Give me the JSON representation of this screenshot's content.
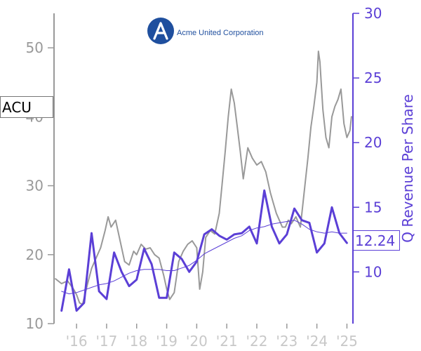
{
  "company_name": "Acme United Corporation",
  "ticker": "ACU",
  "last_value_label": "12.24",
  "colors": {
    "price": "#999999",
    "revenue": "#5b3fd6",
    "revenue_ma": "#5b3fd6",
    "logo": "#1f4f9e",
    "x_tick_labels": "#c8c8c8"
  },
  "chart_data": {
    "type": "line",
    "title": "",
    "xlabel": "",
    "ylabel_left": "",
    "ylabel_right": "Q Revenue Per Share",
    "xlim": [
      2015.25,
      2025.2
    ],
    "ylim_left": [
      10,
      55
    ],
    "ylim_right": [
      6,
      30
    ],
    "x_tick_values": [
      2016,
      2017,
      2018,
      2019,
      2020,
      2021,
      2022,
      2023,
      2024,
      2025
    ],
    "x_tick_labels": [
      "'16",
      "'17",
      "'18",
      "'19",
      "'20",
      "'21",
      "'22",
      "'23",
      "'24",
      "'25"
    ],
    "y_left_ticks": [
      10,
      20,
      30,
      40,
      50
    ],
    "y_left_tick_labels": [
      "10",
      "20",
      "30",
      "40",
      "50"
    ],
    "y_right_ticks": [
      10,
      15,
      20,
      25,
      30
    ],
    "y_right_tick_labels": [
      "10",
      "15",
      "20",
      "25",
      "30"
    ],
    "grid": false,
    "legend": "none",
    "series": [
      {
        "axis": "left",
        "x": [
          2015.3,
          2015.5,
          2015.7,
          2015.9,
          2016.0,
          2016.1,
          2016.2,
          2016.35,
          2016.5,
          2016.65,
          2016.8,
          2016.95,
          2017.05,
          2017.15,
          2017.3,
          2017.45,
          2017.6,
          2017.75,
          2017.9,
          2018.0,
          2018.15,
          2018.3,
          2018.45,
          2018.6,
          2018.75,
          2018.9,
          2019.0,
          2019.1,
          2019.25,
          2019.4,
          2019.55,
          2019.7,
          2019.85,
          2020.0,
          2020.1,
          2020.2,
          2020.3,
          2020.45,
          2020.6,
          2020.75,
          2020.85,
          2020.95,
          2021.05,
          2021.15,
          2021.25,
          2021.35,
          2021.45,
          2021.55,
          2021.7,
          2021.85,
          2022.0,
          2022.15,
          2022.3,
          2022.45,
          2022.55,
          2022.65,
          2022.75,
          2022.85,
          2022.95,
          2023.05,
          2023.15,
          2023.3,
          2023.45,
          2023.6,
          2023.7,
          2023.8,
          2023.9,
          2024.0,
          2024.05,
          2024.1,
          2024.2,
          2024.3,
          2024.4,
          2024.5,
          2024.6,
          2024.7,
          2024.8,
          2024.9,
          2025.0,
          2025.1,
          2025.15
        ],
        "y": [
          16.5,
          15.8,
          16.2,
          15.0,
          14.2,
          13.0,
          12.8,
          15.5,
          18.0,
          19.5,
          21.0,
          23.5,
          25.5,
          24.0,
          25.0,
          22.0,
          19.0,
          18.5,
          20.5,
          20.0,
          21.5,
          20.8,
          21.0,
          20.0,
          19.5,
          17.0,
          15.0,
          13.5,
          14.5,
          19.0,
          20.5,
          21.5,
          22.0,
          21.0,
          15.0,
          17.5,
          22.5,
          23.5,
          23.0,
          26.0,
          30.5,
          35.0,
          40.0,
          44.0,
          42.0,
          38.5,
          35.0,
          31.0,
          35.5,
          34.0,
          33.0,
          33.5,
          32.0,
          29.0,
          27.5,
          26.0,
          25.0,
          24.0,
          24.0,
          25.0,
          24.5,
          25.5,
          24.0,
          30.0,
          34.0,
          38.5,
          41.5,
          45.0,
          49.5,
          48.0,
          41.0,
          37.0,
          35.5,
          40.0,
          41.5,
          42.5,
          44.0,
          39.0,
          37.0,
          38.0,
          40.0
        ]
      },
      {
        "axis": "right",
        "x": [
          2015.5,
          2015.75,
          2016.0,
          2016.25,
          2016.5,
          2016.75,
          2017.0,
          2017.25,
          2017.5,
          2017.75,
          2018.0,
          2018.25,
          2018.5,
          2018.75,
          2019.0,
          2019.25,
          2019.5,
          2019.75,
          2020.0,
          2020.25,
          2020.5,
          2020.75,
          2021.0,
          2021.25,
          2021.5,
          2021.75,
          2022.0,
          2022.25,
          2022.5,
          2022.75,
          2023.0,
          2023.25,
          2023.5,
          2023.75,
          2024.0,
          2024.25,
          2024.5,
          2024.75,
          2025.0
        ],
        "y": [
          7.0,
          10.2,
          7.0,
          7.6,
          13.0,
          8.5,
          7.9,
          11.5,
          10.0,
          8.9,
          9.4,
          11.8,
          10.6,
          8.0,
          8.0,
          11.5,
          11.0,
          10.0,
          10.8,
          12.9,
          13.3,
          12.8,
          12.5,
          12.9,
          13.0,
          13.5,
          12.2,
          16.3,
          13.5,
          12.2,
          12.9,
          14.9,
          14.0,
          13.8,
          11.5,
          12.2,
          15.0,
          13.0,
          12.24
        ]
      },
      {
        "axis": "right",
        "x": [
          2015.5,
          2015.75,
          2016.0,
          2016.25,
          2016.5,
          2016.75,
          2017.0,
          2017.25,
          2017.5,
          2017.75,
          2018.0,
          2018.25,
          2018.5,
          2018.75,
          2019.0,
          2019.25,
          2019.5,
          2019.75,
          2020.0,
          2020.25,
          2020.5,
          2020.75,
          2021.0,
          2021.25,
          2021.5,
          2021.75,
          2022.0,
          2022.25,
          2022.5,
          2022.75,
          2023.0,
          2023.25,
          2023.5,
          2023.75,
          2024.0,
          2024.25,
          2024.5,
          2024.75,
          2025.0
        ],
        "y": [
          8.5,
          8.3,
          8.4,
          8.6,
          8.8,
          9.0,
          9.1,
          9.3,
          9.6,
          9.9,
          10.1,
          10.2,
          10.2,
          10.2,
          10.1,
          10.1,
          10.3,
          10.5,
          10.9,
          11.4,
          11.7,
          12.0,
          12.3,
          12.6,
          12.8,
          13.2,
          13.4,
          13.5,
          13.7,
          13.8,
          13.9,
          14.0,
          13.7,
          13.3,
          13.1,
          13.0,
          13.1,
          13.0,
          13.0
        ]
      }
    ]
  }
}
